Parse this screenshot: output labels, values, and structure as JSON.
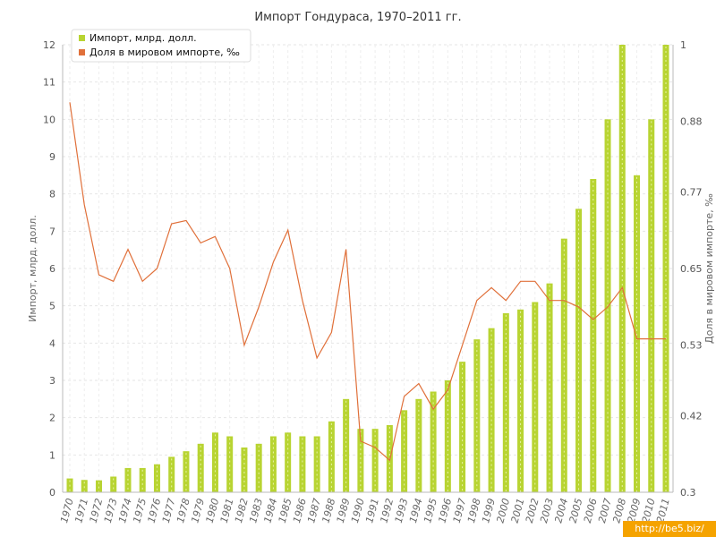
{
  "chart_data": {
    "type": "bar",
    "title": "Импорт Гондураса, 1970–2011 гг.",
    "ylabel_left": "Импорт, млрд. долл.",
    "ylabel_right": "Доля в мировом импорте, ‰",
    "x": [
      "1970",
      "1971",
      "1972",
      "1973",
      "1974",
      "1975",
      "1976",
      "1977",
      "1978",
      "1979",
      "1980",
      "1981",
      "1982",
      "1983",
      "1984",
      "1985",
      "1986",
      "1987",
      "1988",
      "1989",
      "1990",
      "1991",
      "1992",
      "1993",
      "1994",
      "1995",
      "1996",
      "1997",
      "1998",
      "1999",
      "2000",
      "2001",
      "2002",
      "2003",
      "2004",
      "2005",
      "2006",
      "2007",
      "2008",
      "2009",
      "2010",
      "2011"
    ],
    "y_left": {
      "min": 0,
      "max": 12,
      "ticks": [
        "0",
        "1",
        "2",
        "3",
        "4",
        "5",
        "6",
        "7",
        "8",
        "9",
        "10",
        "11",
        "12"
      ]
    },
    "y_right": {
      "min": 0.3,
      "max": 1,
      "ticks": [
        "0.3",
        "0.42",
        "0.53",
        "0.65",
        "0.77",
        "0.88",
        "1"
      ]
    },
    "grid": true,
    "legend_position": "top-left",
    "series": [
      {
        "name": "Импорт, млрд. долл.",
        "type": "bar",
        "axis": "left",
        "color": "#b8d432",
        "values": [
          0.37,
          0.33,
          0.32,
          0.42,
          0.65,
          0.65,
          0.75,
          0.95,
          1.1,
          1.3,
          1.6,
          1.5,
          1.2,
          1.3,
          1.5,
          1.6,
          1.5,
          1.5,
          1.9,
          2.5,
          1.7,
          1.7,
          1.8,
          2.2,
          2.5,
          2.7,
          3.0,
          3.5,
          4.1,
          4.4,
          4.8,
          4.9,
          5.1,
          5.6,
          6.8,
          7.6,
          8.4,
          10.0,
          12.0,
          8.5,
          10.0,
          12.0
        ]
      },
      {
        "name": "Доля в мировом импорте, ‰",
        "type": "line",
        "axis": "right",
        "color": "#e0703a",
        "values": [
          0.91,
          0.75,
          0.64,
          0.63,
          0.68,
          0.63,
          0.65,
          0.72,
          0.725,
          0.69,
          0.7,
          0.65,
          0.53,
          0.59,
          0.66,
          0.71,
          0.6,
          0.51,
          0.55,
          0.68,
          0.38,
          0.37,
          0.35,
          0.45,
          0.47,
          0.43,
          0.46,
          0.53,
          0.6,
          0.62,
          0.6,
          0.63,
          0.63,
          0.6,
          0.6,
          0.59,
          0.57,
          0.59,
          0.62,
          0.54,
          0.54,
          0.54
        ]
      }
    ]
  },
  "watermark": "http://be5.biz/"
}
